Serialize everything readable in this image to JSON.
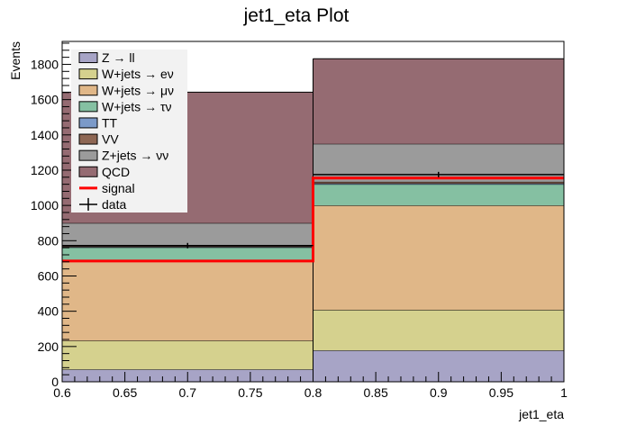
{
  "chart_data": {
    "type": "stacked-histogram",
    "title": "jet1_eta Plot",
    "xlabel": "jet1_eta",
    "ylabel": "Events",
    "xlim": [
      0.6,
      1.0
    ],
    "ylim": [
      0,
      1930
    ],
    "x_ticks": [
      "0.6",
      "0.65",
      "0.7",
      "0.75",
      "0.8",
      "0.85",
      "0.9",
      "0.95",
      "1"
    ],
    "x_tick_values": [
      0.6,
      0.65,
      0.7,
      0.75,
      0.8,
      0.85,
      0.9,
      0.95,
      1.0
    ],
    "y_ticks": [
      "0",
      "200",
      "400",
      "600",
      "800",
      "1000",
      "1200",
      "1400",
      "1600",
      "1800"
    ],
    "y_tick_values": [
      0,
      200,
      400,
      600,
      800,
      1000,
      1200,
      1400,
      1600,
      1800
    ],
    "bins": [
      [
        0.6,
        0.8
      ],
      [
        0.8,
        1.0
      ]
    ],
    "stack": [
      {
        "name": "Z → ll",
        "color": "#a7a4c6",
        "values": [
          70,
          178
        ]
      },
      {
        "name": "W+jets → eν",
        "color": "#d5d18e",
        "values": [
          163,
          230
        ]
      },
      {
        "name": "W+jets → μν",
        "color": "#e0b788",
        "values": [
          452,
          592
        ]
      },
      {
        "name": "W+jets → τν",
        "color": "#85c0a2",
        "values": [
          77,
          120
        ]
      },
      {
        "name": "TT",
        "color": "#7b9ac9",
        "values": [
          3,
          5
        ]
      },
      {
        "name": "VV",
        "color": "#8e6754",
        "values": [
          5,
          9
        ]
      },
      {
        "name": "Z+jets → νν",
        "color": "#9b9b9b",
        "values": [
          130,
          215
        ]
      },
      {
        "name": "QCD",
        "color": "#956b72",
        "values": [
          742,
          483
        ]
      }
    ],
    "signal": {
      "name": "signal",
      "color": "#ff0000",
      "values": [
        685,
        1155
      ]
    },
    "data": {
      "name": "data",
      "values": [
        772,
        1175
      ]
    },
    "legend": {
      "position": "top-left",
      "entries": [
        {
          "label": "Z → ll",
          "style": "fill",
          "color": "#a7a4c6"
        },
        {
          "label": "W+jets → eν",
          "style": "fill",
          "color": "#d5d18e"
        },
        {
          "label": "W+jets → μν",
          "style": "fill",
          "color": "#e0b788"
        },
        {
          "label": "W+jets → τν",
          "style": "fill",
          "color": "#85c0a2"
        },
        {
          "label": "TT",
          "style": "fill",
          "color": "#7b9ac9"
        },
        {
          "label": "VV",
          "style": "fill",
          "color": "#8e6754"
        },
        {
          "label": "Z+jets → νν",
          "style": "fill",
          "color": "#9b9b9b"
        },
        {
          "label": "QCD",
          "style": "fill",
          "color": "#956b72"
        },
        {
          "label": "signal",
          "style": "line",
          "color": "#ff0000"
        },
        {
          "label": "data",
          "style": "marker",
          "color": "#000000"
        }
      ]
    },
    "grid": false
  }
}
